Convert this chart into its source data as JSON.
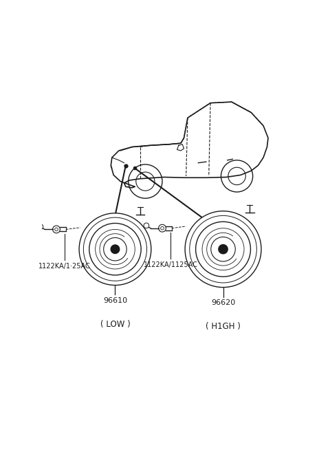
{
  "bg_color": "#ffffff",
  "line_color": "#1a1a1a",
  "gray_color": "#888888",
  "low_label": "1122KA/1·25AC",
  "high_label": "1122KA/1125AC",
  "low_part_num": "96610",
  "high_part_num": "96620",
  "low_caption": "( LOW )",
  "high_caption": "( H1GH )",
  "fig_width": 4.8,
  "fig_height": 6.57,
  "dpi": 100
}
